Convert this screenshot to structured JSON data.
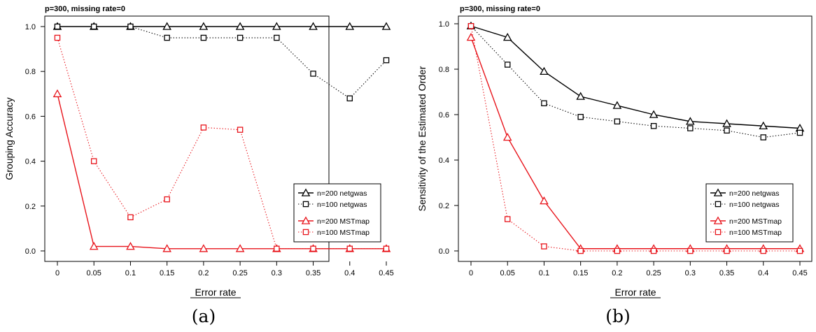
{
  "chart_data": [
    {
      "type": "line",
      "title": "p=300, missing rate=0",
      "caption": "(a)",
      "xlabel": "Error rate",
      "ylabel": "Grouping Accuracy",
      "categories": [
        "0",
        "0.05",
        "0.1",
        "0.15",
        "0.2",
        "0.25",
        "0.3",
        "0.35",
        "0.4",
        "0.45"
      ],
      "yticks": [
        "0.0",
        "0.2",
        "0.4",
        "0.6",
        "0.8",
        "1.0"
      ],
      "ylim": [
        0,
        1
      ],
      "legend_position": "lower-right",
      "series": [
        {
          "name": "n=200 netgwas",
          "color": "#000000",
          "style": "solid",
          "marker": "triangle",
          "values": [
            1.0,
            1.0,
            1.0,
            1.0,
            1.0,
            1.0,
            1.0,
            1.0,
            1.0,
            1.0
          ]
        },
        {
          "name": "n=100 netgwas",
          "color": "#000000",
          "style": "dotted",
          "marker": "square",
          "values": [
            1.0,
            1.0,
            1.0,
            0.95,
            0.95,
            0.95,
            0.95,
            0.79,
            0.68,
            0.85
          ]
        },
        {
          "name": "n=200 MSTmap",
          "color": "#e8141b",
          "style": "solid",
          "marker": "triangle",
          "values": [
            0.7,
            0.02,
            0.02,
            0.01,
            0.01,
            0.01,
            0.01,
            0.01,
            0.01,
            0.01
          ]
        },
        {
          "name": "n=100 MSTmap",
          "color": "#e8141b",
          "style": "dotted",
          "marker": "square",
          "values": [
            0.95,
            0.4,
            0.15,
            0.23,
            0.55,
            0.54,
            0.01,
            0.01,
            0.01,
            0.01
          ]
        }
      ]
    },
    {
      "type": "line",
      "title": "p=300, missing rate=0",
      "caption": "(b)",
      "xlabel": "Error rate",
      "ylabel": "Sensitivity of the Estimated Order",
      "categories": [
        "0",
        "0.05",
        "0.1",
        "0.15",
        "0.2",
        "0.25",
        "0.3",
        "0.35",
        "0.4",
        "0.45"
      ],
      "yticks": [
        "0.0",
        "0.2",
        "0.4",
        "0.6",
        "0.8",
        "1.0"
      ],
      "ylim": [
        0,
        1
      ],
      "legend_position": "lower-right",
      "series": [
        {
          "name": "n=200 netgwas",
          "color": "#000000",
          "style": "solid",
          "marker": "triangle",
          "values": [
            0.99,
            0.94,
            0.79,
            0.68,
            0.64,
            0.6,
            0.57,
            0.56,
            0.55,
            0.54
          ]
        },
        {
          "name": "n=100 netgwas",
          "color": "#000000",
          "style": "dotted",
          "marker": "square",
          "values": [
            0.99,
            0.82,
            0.65,
            0.59,
            0.57,
            0.55,
            0.54,
            0.53,
            0.5,
            0.52
          ]
        },
        {
          "name": "n=200 MSTmap",
          "color": "#e8141b",
          "style": "solid",
          "marker": "triangle",
          "values": [
            0.94,
            0.5,
            0.22,
            0.01,
            0.01,
            0.01,
            0.01,
            0.01,
            0.01,
            0.01
          ]
        },
        {
          "name": "n=100 MSTmap",
          "color": "#e8141b",
          "style": "dotted",
          "marker": "square",
          "values": [
            0.99,
            0.14,
            0.02,
            0.0,
            0.0,
            0.0,
            0.0,
            0.0,
            0.0,
            0.0
          ]
        }
      ]
    }
  ]
}
